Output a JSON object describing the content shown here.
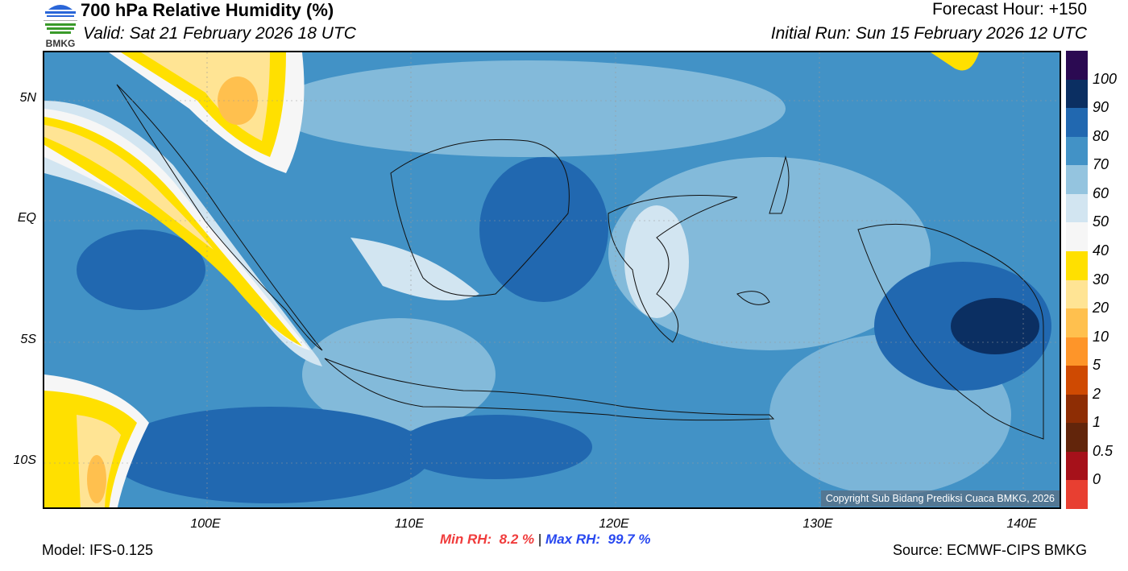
{
  "header": {
    "title": "700 hPa Relative Humidity (%)",
    "valid": "Valid: Sat 21 February 2026 18 UTC",
    "forecast_hour": "Forecast Hour: +150",
    "initial_run": "Initial Run: Sun 15 February 2026 12 UTC",
    "logo_text": "BMKG"
  },
  "axes": {
    "lat_labels": [
      "5N",
      "EQ",
      "5S",
      "10S"
    ],
    "lon_labels": [
      "100E",
      "110E",
      "120E",
      "130E",
      "140E"
    ]
  },
  "colorbar": {
    "labels": [
      "100",
      "90",
      "80",
      "70",
      "60",
      "50",
      "40",
      "30",
      "20",
      "10",
      "5",
      "2",
      "1",
      "0.5",
      "0"
    ],
    "colors": [
      "#2b0a52",
      "#0b2f62",
      "#2168b0",
      "#4292c6",
      "#94c4df",
      "#d2e5f1",
      "#f6f6f6",
      "#ffe000",
      "#ffe494",
      "#ffc04e",
      "#fe9529",
      "#cf4a02",
      "#8e2d04",
      "#62250b",
      "#a6111a",
      "#e83f31"
    ]
  },
  "copyright": "Copyright Sub Bidang Prediksi Cuaca BMKG, 2026",
  "footer": {
    "model": "Model: IFS-0.125",
    "source": "Source: ECMWF-CIPS BMKG",
    "min_label": "Min RH:",
    "min_value": "8.2 %",
    "separator": "|",
    "max_label": "Max RH:",
    "max_value": "99.7 %",
    "min_color": "#f03c3c",
    "max_color": "#2848f0"
  }
}
